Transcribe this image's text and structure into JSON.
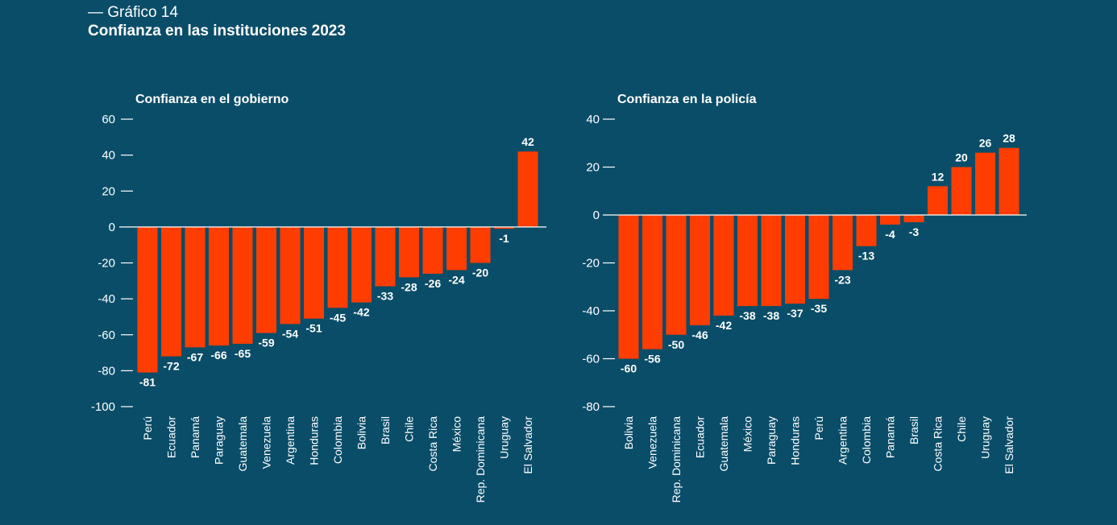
{
  "figure": {
    "label": "— Gráfico 14",
    "title": "Confianza en las instituciones 2023"
  },
  "colors": {
    "background": "#0a4d68",
    "bar": "#ff3d00",
    "text": "#ffffff",
    "axis": "#ffffff"
  },
  "chart_data": [
    {
      "type": "bar",
      "title": "Confianza en el gobierno",
      "categories": [
        "Perú",
        "Ecuador",
        "Panamá",
        "Paraguay",
        "Guatemala",
        "Venezuela",
        "Argentina",
        "Honduras",
        "Colombia",
        "Bolivia",
        "Brasil",
        "Chile",
        "Costa Rica",
        "México",
        "Rep. Dominicana",
        "Uruguay",
        "El Salvador"
      ],
      "values": [
        -81,
        -72,
        -67,
        -66,
        -65,
        -59,
        -54,
        -51,
        -45,
        -42,
        -33,
        -28,
        -26,
        -24,
        -20,
        -1,
        42
      ],
      "ylim": [
        -100,
        60
      ],
      "yticks": [
        60,
        40,
        20,
        0,
        -20,
        -40,
        -60,
        -80,
        -100
      ],
      "grid": false,
      "legend": "none"
    },
    {
      "type": "bar",
      "title": "Confianza en la policía",
      "categories": [
        "Bolivia",
        "Venezuela",
        "Rep. Dominicana",
        "Ecuador",
        "Guatemala",
        "México",
        "Paraguay",
        "Honduras",
        "Perú",
        "Argentina",
        "Colombia",
        "Panamá",
        "Brasil",
        "Costa Rica",
        "Chile",
        "Uruguay",
        "El Salvador"
      ],
      "values": [
        -60,
        -56,
        -50,
        -46,
        -42,
        -38,
        -38,
        -37,
        -35,
        -23,
        -13,
        -4,
        -3,
        12,
        20,
        26,
        28
      ],
      "ylim": [
        -80,
        40
      ],
      "yticks": [
        40,
        20,
        0,
        -20,
        -40,
        -60,
        -80
      ],
      "grid": false,
      "legend": "none"
    }
  ]
}
